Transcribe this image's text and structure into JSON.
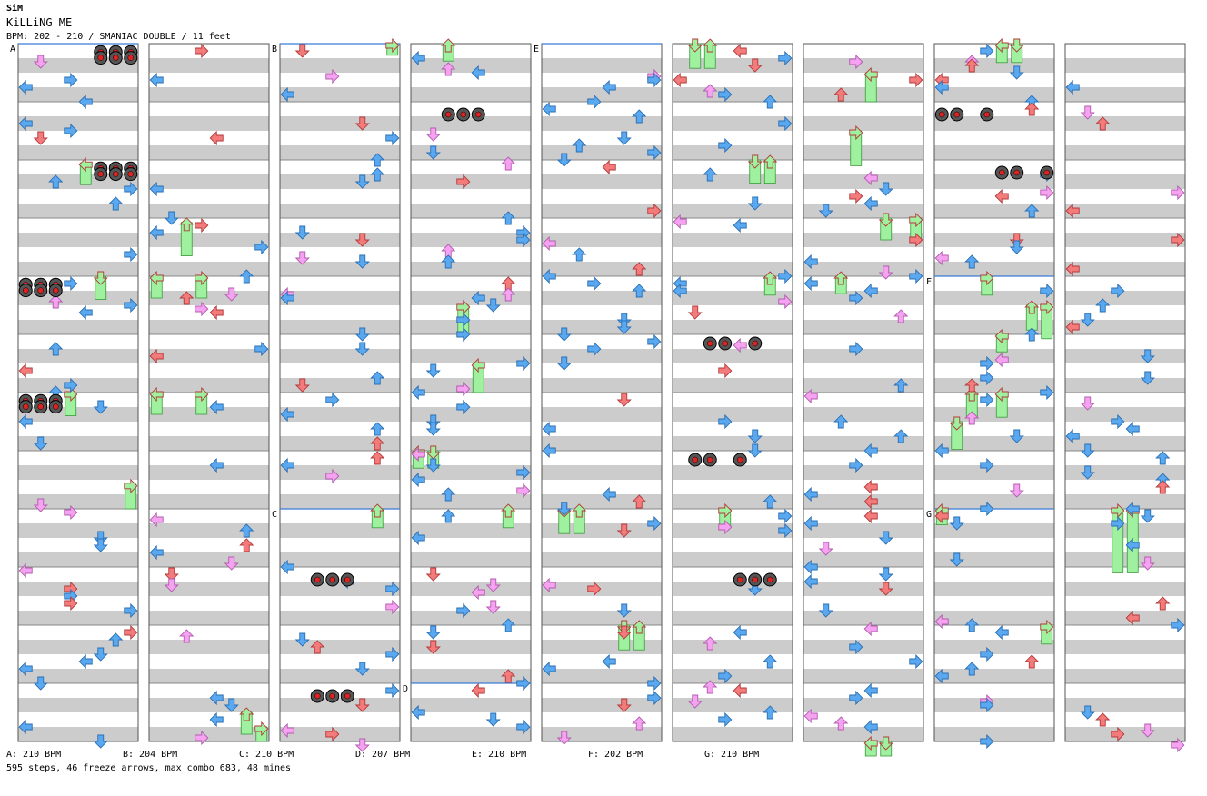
{
  "header": {
    "artist": "SiM",
    "title": "KiLLiNG ME",
    "meta": "BPM: 202 - 210 / SMANIAC DOUBLE / 11 feet"
  },
  "footer": {
    "stats": "595 steps, 46 freeze arrows, max combo 683, 48 mines"
  },
  "bpm_legend": [
    {
      "label": "A: 210 BPM"
    },
    {
      "label": "B: 204 BPM"
    },
    {
      "label": "C: 210 BPM"
    },
    {
      "label": "D: 207 BPM"
    },
    {
      "label": "E: 210 BPM"
    },
    {
      "label": "F: 202 BPM"
    },
    {
      "label": "G: 210 BPM"
    }
  ],
  "chart_data": {
    "type": "step-chart",
    "mode": "double",
    "lanes": 8,
    "lane_names": [
      "P1-left",
      "P1-down",
      "P1-up",
      "P1-right",
      "P2-left",
      "P2-down",
      "P2-up",
      "P2-right"
    ],
    "columns": 9,
    "measures_per_column": 12,
    "total_measures": 106,
    "colors": {
      "quarter": "#f47b7b",
      "eighth": "#5aa9f0",
      "sixteenth": "#f5a3f0",
      "freeze": "#9ff09f",
      "mine": "#222222",
      "bpm_line": "#3a7bd5"
    },
    "bpm_markers": [
      {
        "label": "A",
        "column": 0,
        "measure": 0
      },
      {
        "label": "B",
        "column": 2,
        "measure": 0
      },
      {
        "label": "C",
        "column": 2,
        "measure": 8
      },
      {
        "label": "D",
        "column": 3,
        "measure": 11
      },
      {
        "label": "E",
        "column": 4,
        "measure": 0
      },
      {
        "label": "F",
        "column": 7,
        "measure": 4
      },
      {
        "label": "G",
        "column": 7,
        "measure": 8
      }
    ],
    "mines": [
      {
        "col": 0,
        "beat": 0.2,
        "lanes": [
          5,
          6,
          7
        ]
      },
      {
        "col": 0,
        "beat": 0.6,
        "lanes": [
          5,
          6,
          7
        ]
      },
      {
        "col": 0,
        "beat": 8.2,
        "lanes": [
          5,
          6,
          7
        ]
      },
      {
        "col": 0,
        "beat": 8.6,
        "lanes": [
          5,
          6,
          7
        ]
      },
      {
        "col": 0,
        "beat": 16.2,
        "lanes": [
          0,
          1,
          2
        ]
      },
      {
        "col": 0,
        "beat": 16.6,
        "lanes": [
          0,
          1,
          2
        ]
      },
      {
        "col": 0,
        "beat": 24.2,
        "lanes": [
          0,
          1,
          2
        ]
      },
      {
        "col": 0,
        "beat": 24.6,
        "lanes": [
          0,
          1,
          2
        ]
      },
      {
        "col": 2,
        "beat": 36.5,
        "lanes": [
          2,
          3,
          4
        ]
      },
      {
        "col": 2,
        "beat": 44.5,
        "lanes": [
          2,
          3,
          4
        ]
      },
      {
        "col": 3,
        "beat": 4.5,
        "lanes": [
          2,
          3,
          4
        ]
      },
      {
        "col": 5,
        "beat": 20.25,
        "lanes": [
          2,
          3,
          5
        ]
      },
      {
        "col": 5,
        "beat": 28.25,
        "lanes": [
          1,
          2,
          4
        ]
      },
      {
        "col": 5,
        "beat": 36.5,
        "lanes": [
          4,
          5,
          6
        ]
      },
      {
        "col": 7,
        "beat": 4.5,
        "lanes": [
          0,
          1,
          3
        ]
      },
      {
        "col": 7,
        "beat": 8.5,
        "lanes": [
          4,
          5,
          7
        ]
      }
    ],
    "freezes": [
      {
        "col": 0,
        "lane": 4,
        "start": 8.2,
        "end": 9.7
      },
      {
        "col": 0,
        "lane": 5,
        "start": 16.0,
        "end": 17.6
      },
      {
        "col": 0,
        "lane": 3,
        "start": 24.0,
        "end": 25.6
      },
      {
        "col": 0,
        "lane": 7,
        "start": 30.3,
        "end": 32.0
      },
      {
        "col": 1,
        "lane": 2,
        "start": 12.3,
        "end": 14.6
      },
      {
        "col": 1,
        "lane": 0,
        "start": 16.0,
        "end": 17.5
      },
      {
        "col": 1,
        "lane": 3,
        "start": 16.0,
        "end": 17.5
      },
      {
        "col": 1,
        "lane": 0,
        "start": 24.0,
        "end": 25.5
      },
      {
        "col": 1,
        "lane": 3,
        "start": 24.0,
        "end": 25.5
      },
      {
        "col": 1,
        "lane": 6,
        "start": 46.0,
        "end": 47.5
      },
      {
        "col": 1,
        "lane": 7,
        "start": 47.0,
        "end": 48.0
      },
      {
        "col": 2,
        "lane": 7,
        "start": 0,
        "end": 0.8
      },
      {
        "col": 2,
        "lane": 6,
        "start": 32.0,
        "end": 33.3
      },
      {
        "col": 3,
        "lane": 2,
        "start": 0,
        "end": 1.2
      },
      {
        "col": 3,
        "lane": 3,
        "start": 18.0,
        "end": 20.0
      },
      {
        "col": 3,
        "lane": 4,
        "start": 22.0,
        "end": 24.0
      },
      {
        "col": 3,
        "lane": 0,
        "start": 28.0,
        "end": 29.2
      },
      {
        "col": 3,
        "lane": 1,
        "start": 28.0,
        "end": 29.2
      },
      {
        "col": 3,
        "lane": 6,
        "start": 32.0,
        "end": 33.3
      },
      {
        "col": 4,
        "lane": 1,
        "start": 32.0,
        "end": 33.7
      },
      {
        "col": 4,
        "lane": 2,
        "start": 32.0,
        "end": 33.7
      },
      {
        "col": 4,
        "lane": 5,
        "start": 40.0,
        "end": 41.7
      },
      {
        "col": 4,
        "lane": 6,
        "start": 40.0,
        "end": 41.7
      },
      {
        "col": 5,
        "lane": 1,
        "start": 0,
        "end": 1.7
      },
      {
        "col": 5,
        "lane": 2,
        "start": 0,
        "end": 1.7
      },
      {
        "col": 5,
        "lane": 5,
        "start": 8.0,
        "end": 9.6
      },
      {
        "col": 5,
        "lane": 6,
        "start": 8.0,
        "end": 9.6
      },
      {
        "col": 5,
        "lane": 6,
        "start": 16.0,
        "end": 17.3
      },
      {
        "col": 5,
        "lane": 3,
        "start": 32.0,
        "end": 33.3
      },
      {
        "col": 6,
        "lane": 4,
        "start": 2.0,
        "end": 4.0
      },
      {
        "col": 6,
        "lane": 3,
        "start": 6.0,
        "end": 8.4
      },
      {
        "col": 6,
        "lane": 5,
        "start": 12.0,
        "end": 13.5
      },
      {
        "col": 6,
        "lane": 7,
        "start": 12.0,
        "end": 13.5
      },
      {
        "col": 6,
        "lane": 2,
        "start": 16.0,
        "end": 17.2
      },
      {
        "col": 6,
        "lane": 4,
        "start": 48.0,
        "end": 49.0
      },
      {
        "col": 6,
        "lane": 5,
        "start": 48.0,
        "end": 49.0
      },
      {
        "col": 7,
        "lane": 4,
        "start": 0,
        "end": 1.3
      },
      {
        "col": 7,
        "lane": 5,
        "start": 0,
        "end": 1.3
      },
      {
        "col": 7,
        "lane": 3,
        "start": 16.0,
        "end": 17.3
      },
      {
        "col": 7,
        "lane": 6,
        "start": 18.0,
        "end": 19.7
      },
      {
        "col": 7,
        "lane": 7,
        "start": 18.0,
        "end": 20.3
      },
      {
        "col": 7,
        "lane": 4,
        "start": 20.0,
        "end": 21.2
      },
      {
        "col": 7,
        "lane": 2,
        "start": 24.0,
        "end": 25.7
      },
      {
        "col": 7,
        "lane": 1,
        "start": 26.0,
        "end": 27.9
      },
      {
        "col": 7,
        "lane": 4,
        "start": 24.0,
        "end": 25.7
      },
      {
        "col": 7,
        "lane": 0,
        "start": 32.0,
        "end": 33.1
      },
      {
        "col": 7,
        "lane": 7,
        "start": 40.0,
        "end": 41.3
      },
      {
        "col": 8,
        "lane": 3,
        "start": 32.0,
        "end": 36.4
      },
      {
        "col": 8,
        "lane": 4,
        "start": 32.0,
        "end": 36.4
      }
    ]
  }
}
